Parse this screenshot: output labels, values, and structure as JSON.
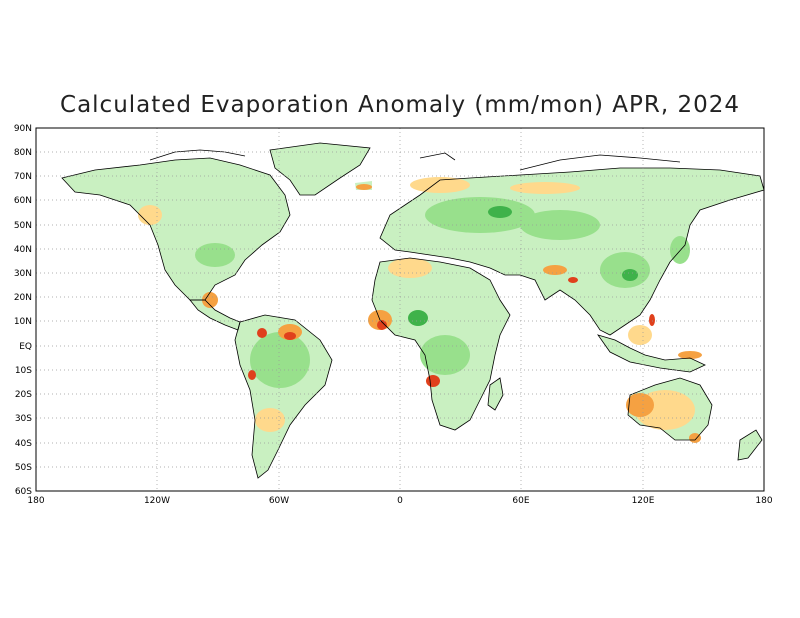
{
  "title": "Calculated Evaporation Anomaly (mm/mon) APR, 2024",
  "y_ticks": [
    "90N",
    "80N",
    "70N",
    "60N",
    "50N",
    "40N",
    "30N",
    "20N",
    "10N",
    "EQ",
    "10S",
    "20S",
    "30S",
    "40S",
    "50S",
    "60S"
  ],
  "x_ticks": [
    "180",
    "120W",
    "60W",
    "0",
    "60E",
    "120E",
    "180"
  ],
  "colors": {
    "frame": "#000000",
    "grid": "#999999",
    "coast": "#000000",
    "light_green": "#c9f0c1",
    "mid_green": "#98e08c",
    "dark_green": "#3fb24a",
    "light_orange": "#ffd98c",
    "orange": "#f5a142",
    "red": "#e0401c"
  }
}
